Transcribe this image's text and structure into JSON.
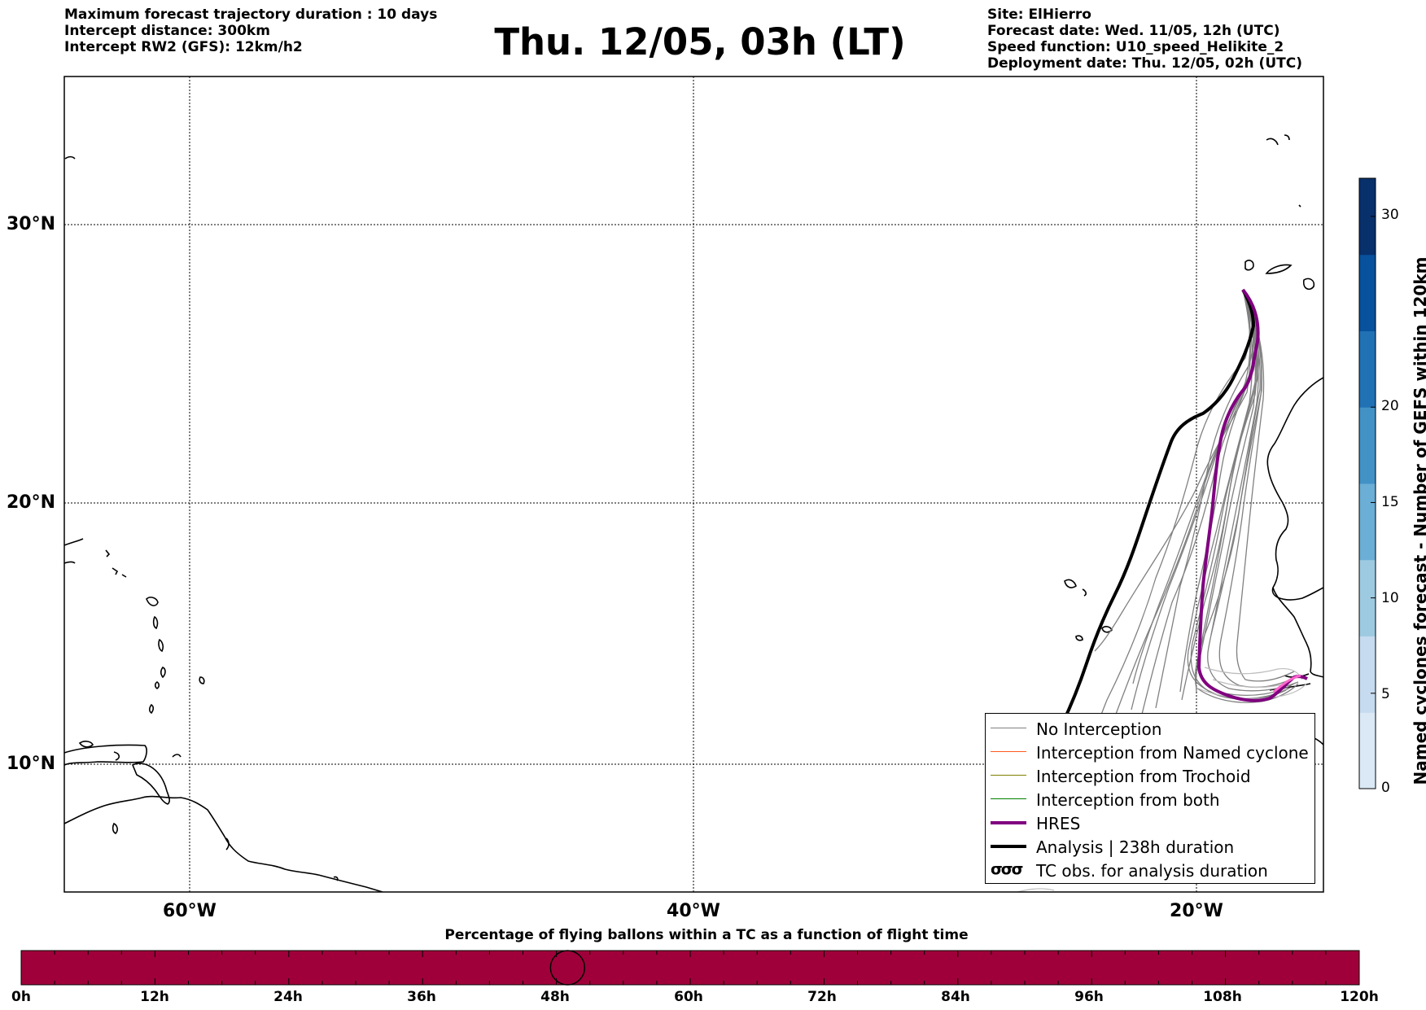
{
  "header": {
    "left_lines": [
      "Maximum forecast trajectory duration : 10 days",
      "Intercept distance: 300km",
      "Intercept RW2 (GFS):  12km/h2"
    ],
    "title": "Thu. 12/05, 03h (LT)",
    "right_lines": [
      "Site: ElHierro",
      "Forecast date: Wed. 11/05, 12h (UTC)",
      "Speed function: U10_speed_Helikite_2",
      "Deployment date: Thu. 12/05, 02h (UTC)"
    ]
  },
  "map": {
    "lat_labels": [
      "30°N",
      "20°N",
      "10°N"
    ],
    "lon_labels": [
      "60°W",
      "40°W",
      "20°W"
    ],
    "grid": "dotted",
    "extent": {
      "lon": [
        -65,
        -15
      ],
      "lat": [
        5,
        35
      ]
    }
  },
  "legend": {
    "items": [
      {
        "label": "No Interception",
        "color": "#808080",
        "width": 1.5
      },
      {
        "label": "Interception from Named cyclone",
        "color": "#ff5a1e",
        "width": 1.5
      },
      {
        "label": "Interception from Trochoid",
        "color": "#808000",
        "width": 1.5
      },
      {
        "label": "Interception from both",
        "color": "#008000",
        "width": 1.5
      },
      {
        "label": "HRES",
        "color": "#800080",
        "width": 4
      },
      {
        "label": "Analysis | 238h duration",
        "color": "#000000",
        "width": 4
      },
      {
        "label": "TC obs. for analysis duration",
        "glyph": "tc-symbol-icon"
      }
    ]
  },
  "colorbar": {
    "title": "Named cyclones forecast - Number of GEFS within 120km",
    "ticks": [
      "0",
      "5",
      "10",
      "15",
      "20",
      "30"
    ],
    "range": [
      0,
      32
    ],
    "colors": [
      "#dbe9f6",
      "#c6dbef",
      "#9ecae1",
      "#6baed6",
      "#4292c6",
      "#2171b5",
      "#08519c",
      "#08306b"
    ]
  },
  "timebar": {
    "title": "Percentage of flying ballons within a TC as a function of flight time",
    "ticks": [
      "0h",
      "12h",
      "24h",
      "36h",
      "48h",
      "60h",
      "72h",
      "84h",
      "96h",
      "108h",
      "120h"
    ],
    "fill_color": "#a0003a",
    "marker_hour": 49
  }
}
